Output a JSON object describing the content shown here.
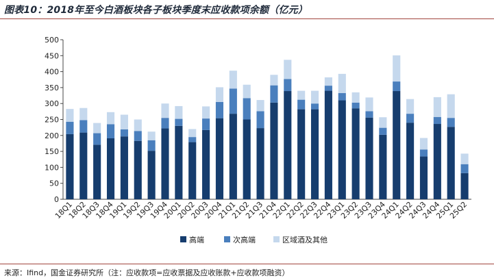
{
  "title": "图表10：2018年至今白酒板块各子板块季度末应收款项余额（亿元）",
  "source": "来源：Ifind，国金证券研究所（注：应收款项=应收票据及应收账款+应收款项融资）",
  "chart_data": {
    "type": "bar",
    "stacked": true,
    "ylim": [
      0,
      500
    ],
    "yticks": [
      0,
      50,
      100,
      150,
      200,
      250,
      300,
      350,
      400,
      450,
      500
    ],
    "grid": false,
    "legend_position": "bottom",
    "categories": [
      "18Q1",
      "18Q2",
      "18Q3",
      "18Q4",
      "19Q1",
      "19Q2",
      "19Q3",
      "19Q4",
      "20Q1",
      "20Q2",
      "20Q3",
      "20Q4",
      "21Q1",
      "21Q2",
      "21Q3",
      "21Q4",
      "22Q1",
      "22Q2",
      "22Q3",
      "22Q4",
      "23Q1",
      "23Q2",
      "23Q3",
      "23Q4",
      "24Q1",
      "24Q2",
      "24Q3",
      "24Q4",
      "25Q1",
      "25Q2"
    ],
    "series": [
      {
        "name": "高端",
        "color": "#163d6e",
        "values": [
          204,
          209,
          171,
          191,
          197,
          183,
          152,
          222,
          230,
          179,
          217,
          254,
          268,
          250,
          223,
          303,
          339,
          282,
          282,
          340,
          310,
          285,
          256,
          202,
          339,
          240,
          134,
          236,
          227,
          82
        ]
      },
      {
        "name": "次高端",
        "color": "#4a7fbd",
        "values": [
          39,
          39,
          36,
          44,
          22,
          31,
          33,
          33,
          22,
          16,
          36,
          51,
          79,
          67,
          53,
          54,
          38,
          30,
          18,
          16,
          23,
          18,
          20,
          22,
          30,
          28,
          22,
          22,
          28,
          28
        ]
      },
      {
        "name": "区域酒及其他",
        "color": "#c5d8ed",
        "values": [
          40,
          38,
          32,
          38,
          46,
          36,
          27,
          45,
          40,
          25,
          38,
          46,
          56,
          42,
          35,
          33,
          60,
          28,
          40,
          26,
          60,
          32,
          43,
          33,
          82,
          46,
          36,
          62,
          74,
          33
        ]
      }
    ]
  }
}
